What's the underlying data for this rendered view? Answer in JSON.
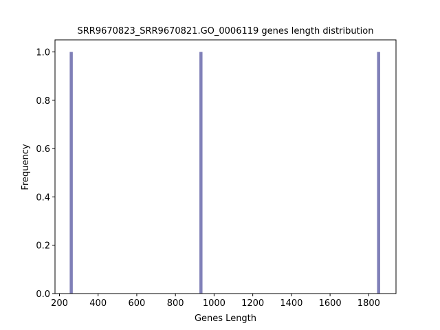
{
  "chart_data": {
    "type": "bar",
    "title": "SRR9670823_SRR9670821.GO_0006119 genes length distribution",
    "xlabel": "Genes Length",
    "ylabel": "Frequency",
    "xlim": [
      177,
      1941
    ],
    "ylim": [
      0,
      1.05
    ],
    "xticks": [
      200,
      400,
      600,
      800,
      1000,
      1200,
      1400,
      1600,
      1800
    ],
    "yticks": [
      0.0,
      0.2,
      0.4,
      0.6,
      0.8,
      1.0
    ],
    "ytick_labels": [
      "0.0",
      "0.2",
      "0.4",
      "0.6",
      "0.8",
      "1.0"
    ],
    "bar_width": 16,
    "bars": [
      {
        "x": 261,
        "value": 1
      },
      {
        "x": 932,
        "value": 1
      },
      {
        "x": 1851,
        "value": 1
      }
    ],
    "bar_color": "#8080b8",
    "grid": false,
    "legend": "none"
  }
}
